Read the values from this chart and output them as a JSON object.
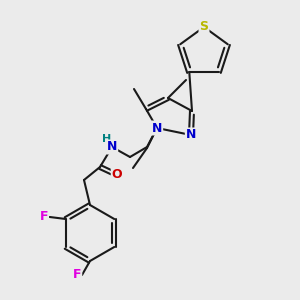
{
  "background_color": "#ebebeb",
  "bond_color": "#1a1a1a",
  "atoms": {
    "S": {
      "color": "#b8b800"
    },
    "N": {
      "color": "#0000cc"
    },
    "O": {
      "color": "#cc0000"
    },
    "F": {
      "color": "#e000e0"
    },
    "H": {
      "color": "#008080"
    }
  },
  "figsize": [
    3.0,
    3.0
  ],
  "dpi": 100
}
